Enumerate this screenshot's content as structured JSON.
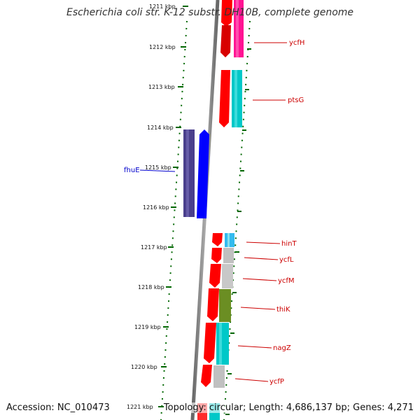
{
  "title": "Escherichia coli str. K-12 substr. DH10B, complete genome",
  "footer": {
    "accession": "Accession: NC_010473",
    "summary": "Topology: circular; Length: 4,686,137 bp; Genes: 4,271"
  },
  "scale_labels": [
    "1211 kbp",
    "1212 kbp",
    "1213 kbp",
    "1214 kbp",
    "1215 kbp",
    "1216 kbp",
    "1217 kbp",
    "1218 kbp",
    "1219 kbp",
    "1220 kbp",
    "1221 kbp"
  ],
  "genes": {
    "ycfH": "ycfH",
    "ptsG": "ptsG",
    "fhuE": "fhuE",
    "hinT": "hinT",
    "ycfL": "ycfL",
    "ycfM": "ycfM",
    "thiK": "thiK",
    "nagZ": "nagZ",
    "ycfP": "ycfP"
  },
  "colors": {
    "backbone": "#888888",
    "cds_red": "#ff0000",
    "blue": "#0000ff",
    "purple": "#4a3f8c",
    "pink": "#ff1493",
    "cyan": "#00c8c8",
    "grey": "#c0c0c0",
    "olive": "#6b8e23",
    "light_blue": "#33bbee",
    "tick_green": "#006600"
  }
}
